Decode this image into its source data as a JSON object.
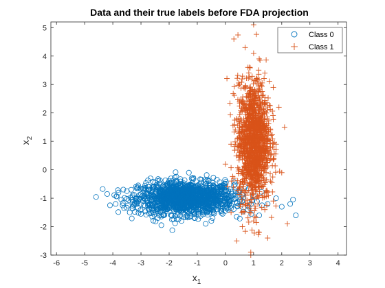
{
  "chart_data": {
    "type": "scatter",
    "title": "Data and their true labels before FDA projection",
    "xlabel": {
      "base": "x",
      "sub": "1"
    },
    "ylabel": {
      "base": "x",
      "sub": "2"
    },
    "xlim": [
      -6.2,
      4.3
    ],
    "ylim": [
      -3.0,
      5.2
    ],
    "xticks": [
      -6,
      -5,
      -4,
      -3,
      -2,
      -1,
      0,
      1,
      2,
      3,
      4
    ],
    "yticks": [
      -3,
      -2,
      -1,
      0,
      1,
      2,
      3,
      4,
      5
    ],
    "xtick_labels": [
      "-6",
      "-5",
      "-4",
      "-3",
      "-2",
      "-1",
      "0",
      "1",
      "2",
      "3",
      "4"
    ],
    "ytick_labels": [
      "-3",
      "-2",
      "-1",
      "0",
      "1",
      "2",
      "3",
      "4",
      "5"
    ],
    "grid": false,
    "box": true,
    "legend_position": "top-right",
    "series": [
      {
        "name": "Class 0",
        "marker": "circle",
        "color": "#0072BD",
        "approx_center": [
          -1.4,
          -1.0
        ],
        "points": [
          [
            -4.2,
            -0.85
          ],
          [
            -4.1,
            -1.25
          ],
          [
            -3.9,
            -1.2
          ],
          [
            -3.8,
            -0.8
          ],
          [
            -3.7,
            -1.05
          ],
          [
            -3.6,
            -1.35
          ],
          [
            -3.5,
            -0.75
          ],
          [
            -3.4,
            -1.5
          ],
          [
            -3.3,
            -0.9
          ],
          [
            -3.2,
            -1.2
          ],
          [
            -3.1,
            -0.55
          ],
          [
            -3.0,
            -1.55
          ],
          [
            -2.9,
            -1.0
          ],
          [
            -2.8,
            -0.7
          ],
          [
            -2.7,
            -1.4
          ],
          [
            -2.6,
            -1.65
          ],
          [
            -2.5,
            -0.45
          ],
          [
            -2.4,
            -1.1
          ],
          [
            -2.3,
            -0.85
          ],
          [
            -2.2,
            -1.6
          ],
          [
            -2.1,
            -1.3
          ],
          [
            -2.0,
            -0.6
          ],
          [
            -1.9,
            -1.75
          ],
          [
            -1.8,
            -0.95
          ],
          [
            -1.7,
            -1.2
          ],
          [
            -1.6,
            -0.5
          ],
          [
            -1.5,
            -1.5
          ],
          [
            -1.4,
            -0.8
          ],
          [
            -1.3,
            -1.3
          ],
          [
            -1.2,
            -0.3
          ],
          [
            -1.1,
            -1.7
          ],
          [
            -1.0,
            -1.0
          ],
          [
            -0.9,
            -0.65
          ],
          [
            -0.8,
            -1.45
          ],
          [
            -0.7,
            -1.15
          ],
          [
            -0.6,
            -0.4
          ],
          [
            -0.5,
            -1.8
          ],
          [
            -0.4,
            -0.9
          ],
          [
            -0.3,
            -1.25
          ],
          [
            -0.2,
            -0.6
          ],
          [
            -0.1,
            -1.55
          ],
          [
            0.0,
            -1.0
          ],
          [
            0.1,
            -0.75
          ],
          [
            0.2,
            -1.35
          ],
          [
            0.3,
            -0.55
          ],
          [
            0.4,
            -1.65
          ],
          [
            0.6,
            -1.1
          ],
          [
            0.8,
            -1.4
          ],
          [
            1.0,
            -0.9
          ],
          [
            1.2,
            -1.6
          ],
          [
            1.5,
            -1.2
          ],
          [
            1.8,
            -1.0
          ],
          [
            2.0,
            -1.3
          ],
          [
            2.3,
            -1.2
          ],
          [
            2.4,
            -1.05
          ],
          [
            2.5,
            -1.6
          ],
          [
            -2.9,
            -1.25
          ],
          [
            -2.6,
            -0.95
          ],
          [
            -2.3,
            -1.35
          ],
          [
            -2.0,
            -1.05
          ],
          [
            -1.7,
            -0.7
          ],
          [
            -1.4,
            -1.1
          ],
          [
            -1.1,
            -0.85
          ],
          [
            -0.8,
            -1.2
          ],
          [
            -0.5,
            -0.7
          ],
          [
            -0.2,
            -1.1
          ],
          [
            0.1,
            -1.4
          ],
          [
            0.4,
            -0.95
          ],
          [
            -3.3,
            -1.35
          ],
          [
            -1.9,
            -0.4
          ],
          [
            -0.7,
            -1.9
          ],
          [
            -1.3,
            -0.1
          ],
          [
            -2.4,
            -1.7
          ],
          [
            -0.3,
            -0.35
          ],
          [
            0.7,
            -0.6
          ],
          [
            1.3,
            -1.25
          ]
        ]
      },
      {
        "name": "Class 1",
        "marker": "plus",
        "color": "#D95319",
        "approx_center": [
          1.0,
          1.0
        ],
        "points": [
          [
            0.0,
            0.2
          ],
          [
            0.2,
            -1.5
          ],
          [
            0.3,
            4.6
          ],
          [
            0.4,
            -2.5
          ],
          [
            0.4,
            1.8
          ],
          [
            0.5,
            3.0
          ],
          [
            0.5,
            -0.6
          ],
          [
            0.6,
            2.4
          ],
          [
            0.6,
            0.0
          ],
          [
            0.7,
            4.3
          ],
          [
            0.7,
            -1.2
          ],
          [
            0.7,
            1.1
          ],
          [
            0.8,
            3.6
          ],
          [
            0.8,
            -0.2
          ],
          [
            0.8,
            2.0
          ],
          [
            0.9,
            -2.9
          ],
          [
            0.9,
            0.6
          ],
          [
            0.9,
            2.8
          ],
          [
            1.0,
            4.1
          ],
          [
            1.0,
            -1.8
          ],
          [
            1.0,
            1.5
          ],
          [
            1.0,
            -0.5
          ],
          [
            1.1,
            3.2
          ],
          [
            1.1,
            0.3
          ],
          [
            1.1,
            2.3
          ],
          [
            1.2,
            -2.2
          ],
          [
            1.2,
            1.0
          ],
          [
            1.2,
            3.9
          ],
          [
            1.3,
            -0.9
          ],
          [
            1.3,
            2.6
          ],
          [
            1.3,
            0.7
          ],
          [
            1.4,
            1.8
          ],
          [
            1.4,
            -1.4
          ],
          [
            1.4,
            3.4
          ],
          [
            1.5,
            0.1
          ],
          [
            1.5,
            2.1
          ],
          [
            1.6,
            -0.4
          ],
          [
            1.6,
            1.4
          ],
          [
            1.7,
            2.9
          ],
          [
            1.7,
            -1.1
          ],
          [
            1.8,
            0.9
          ],
          [
            1.9,
            2.2
          ],
          [
            2.0,
            -0.1
          ],
          [
            2.1,
            1.5
          ],
          [
            2.2,
            -1.9
          ],
          [
            0.2,
            0.9
          ],
          [
            0.5,
            1.3
          ],
          [
            0.8,
            1.2
          ],
          [
            1.1,
            1.7
          ],
          [
            1.4,
            0.5
          ],
          [
            0.9,
            -3.0
          ],
          [
            1.0,
            5.1
          ],
          [
            0.6,
            -2.0
          ],
          [
            1.5,
            -2.4
          ],
          [
            1.7,
            0.4
          ],
          [
            0.3,
            -0.3
          ]
        ]
      }
    ]
  }
}
